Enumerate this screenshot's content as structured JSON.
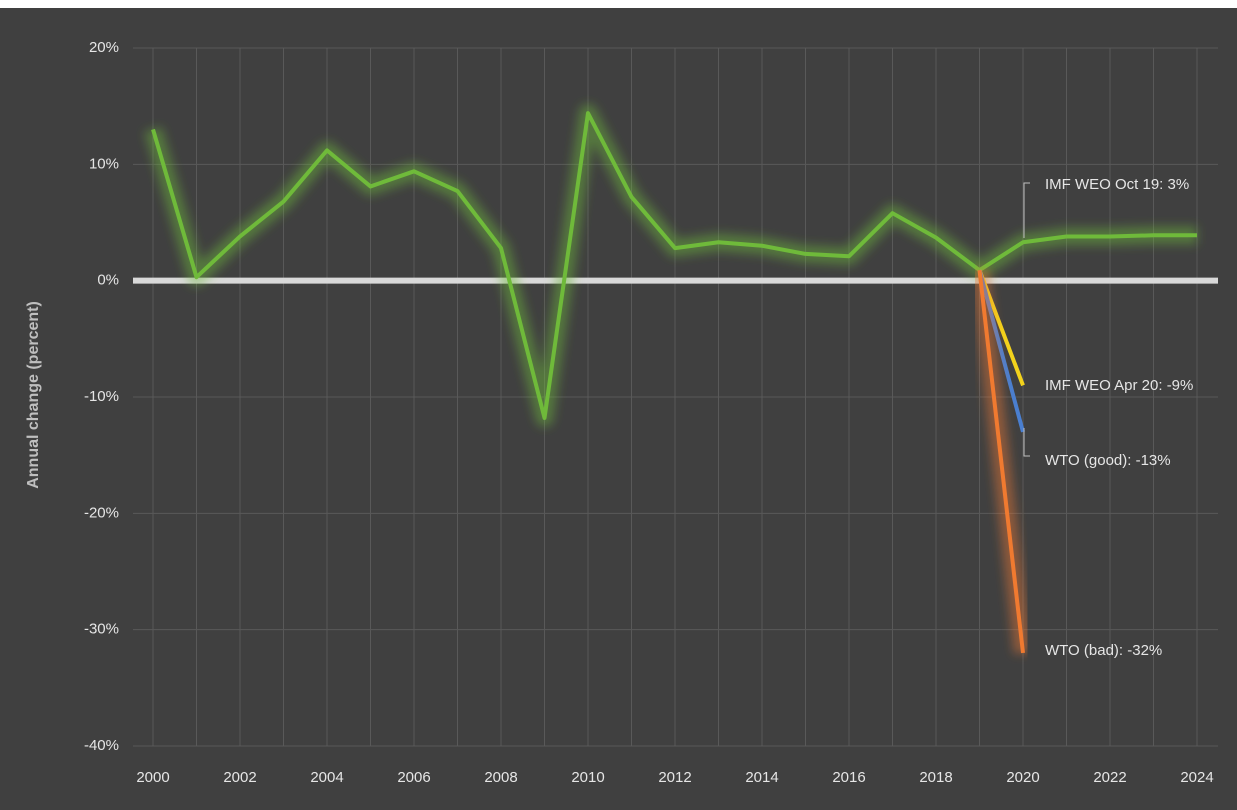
{
  "chart_data": {
    "type": "line",
    "ylabel": "Annual change (percent)",
    "x": [
      2000,
      2001,
      2002,
      2003,
      2004,
      2005,
      2006,
      2007,
      2008,
      2009,
      2010,
      2011,
      2012,
      2013,
      2014,
      2015,
      2016,
      2017,
      2018,
      2019,
      2020,
      2021,
      2022,
      2023,
      2024
    ],
    "xlim": [
      2000,
      2024
    ],
    "xticks": [
      2000,
      2002,
      2004,
      2006,
      2008,
      2010,
      2012,
      2014,
      2016,
      2018,
      2020,
      2022,
      2024
    ],
    "ylim": [
      -40,
      20
    ],
    "yticks": [
      {
        "value": -40,
        "label": "-40%"
      },
      {
        "value": -30,
        "label": "-30%"
      },
      {
        "value": -20,
        "label": "-20%"
      },
      {
        "value": -10,
        "label": "-10%"
      },
      {
        "value": 0,
        "label": "0%"
      },
      {
        "value": 10,
        "label": "10%"
      },
      {
        "value": 20,
        "label": "20%"
      }
    ],
    "grid": true,
    "series": [
      {
        "name": "IMF WEO Oct 19: 3%",
        "color": "#6fba3a",
        "glow": true,
        "values": [
          13,
          0.3,
          3.8,
          6.8,
          11.2,
          8.1,
          9.4,
          7.7,
          2.8,
          -11.8,
          14.4,
          7.2,
          2.8,
          3.3,
          3.0,
          2.3,
          2.1,
          5.8,
          3.7,
          0.9,
          3.3,
          3.8,
          3.8,
          3.9,
          3.9
        ]
      },
      {
        "name": "IMF WEO Apr 20: -9%",
        "color": "#f2d21c",
        "values": [
          null,
          null,
          null,
          null,
          null,
          null,
          null,
          null,
          null,
          null,
          null,
          null,
          null,
          null,
          null,
          null,
          null,
          null,
          null,
          0.9,
          -9,
          null,
          null,
          null,
          null
        ]
      },
      {
        "name": "WTO (good): -13%",
        "color": "#4a7fd0",
        "values": [
          null,
          null,
          null,
          null,
          null,
          null,
          null,
          null,
          null,
          null,
          null,
          null,
          null,
          null,
          null,
          null,
          null,
          null,
          null,
          0.9,
          -13,
          null,
          null,
          null,
          null
        ]
      },
      {
        "name": "WTO (bad): -32%",
        "color": "#f07a30",
        "glow": true,
        "values": [
          null,
          null,
          null,
          null,
          null,
          null,
          null,
          null,
          null,
          null,
          null,
          null,
          null,
          null,
          null,
          null,
          null,
          null,
          null,
          0.9,
          -32,
          null,
          null,
          null,
          null
        ]
      }
    ]
  }
}
